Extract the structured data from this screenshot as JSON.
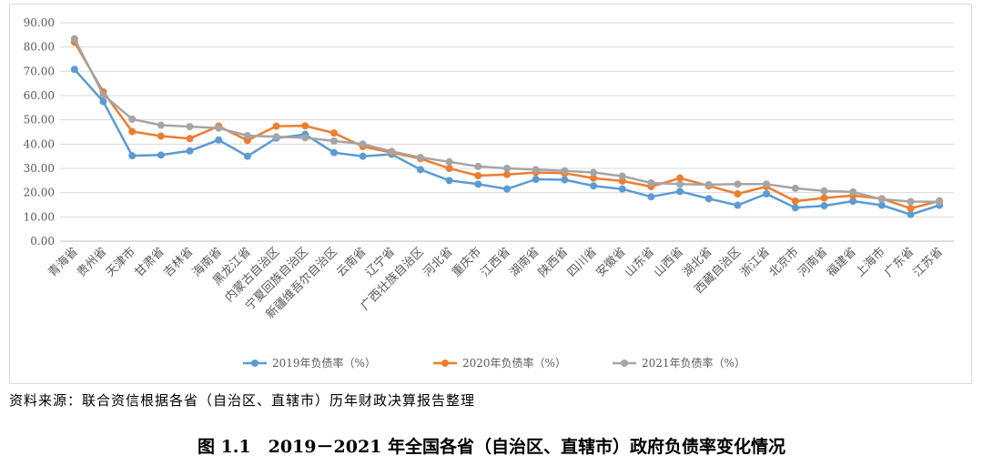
{
  "source_note": "资料来源：联合资信根据各省（自治区、直辖市）历年财政决算报告整理",
  "figure_caption": "图 1.1　2019－2021 年全国各省（自治区、直辖市）政府负债率变化情况",
  "chart_data": {
    "type": "line",
    "title": "",
    "xlabel": "",
    "ylabel": "",
    "ylim": [
      0,
      90
    ],
    "yticks": [
      "0.00",
      "10.00",
      "20.00",
      "30.00",
      "40.00",
      "50.00",
      "60.00",
      "70.00",
      "80.00",
      "90.00"
    ],
    "grid": true,
    "legend_position": "bottom",
    "categories": [
      "青海省",
      "贵州省",
      "天津市",
      "甘肃省",
      "吉林省",
      "海南省",
      "黑龙江省",
      "内蒙古自治区",
      "宁夏回族自治区",
      "新疆维吾尔自治区",
      "云南省",
      "辽宁省",
      "广西壮族自治区",
      "河北省",
      "重庆市",
      "江西省",
      "湖南省",
      "陕西省",
      "四川省",
      "安徽省",
      "山东省",
      "山西省",
      "湖北省",
      "西藏自治区",
      "浙江省",
      "北京市",
      "河南省",
      "福建省",
      "上海市",
      "广东省",
      "江苏省"
    ],
    "series": [
      {
        "name": "2019年负债率（%）",
        "color": "#5b9bd5",
        "values": [
          70.8,
          57.5,
          35.2,
          35.5,
          37.2,
          41.7,
          35.0,
          42.5,
          44.0,
          36.5,
          35.0,
          35.8,
          29.5,
          25.0,
          23.5,
          21.5,
          25.5,
          25.3,
          22.8,
          21.5,
          18.3,
          20.5,
          17.5,
          14.8,
          19.5,
          13.8,
          14.6,
          16.5,
          14.8,
          11.0,
          14.8
        ]
      },
      {
        "name": "2020年负债率（%）",
        "color": "#ed7d31",
        "values": [
          82.0,
          61.5,
          45.2,
          43.3,
          42.3,
          47.4,
          41.5,
          47.4,
          47.5,
          44.6,
          39.0,
          36.5,
          34.0,
          30.0,
          27.0,
          27.5,
          28.3,
          28.0,
          26.0,
          24.8,
          22.5,
          26.0,
          22.8,
          19.5,
          22.5,
          16.5,
          17.8,
          18.8,
          17.5,
          13.5,
          16.6
        ]
      },
      {
        "name": "2021年负债率（%）",
        "color": "#a5a5a5",
        "values": [
          83.4,
          60.3,
          50.3,
          47.8,
          47.2,
          46.6,
          43.5,
          43.0,
          42.6,
          41.3,
          40.0,
          37.0,
          34.5,
          32.7,
          30.8,
          30.0,
          29.5,
          29.0,
          28.3,
          26.8,
          24.0,
          23.5,
          23.3,
          23.5,
          23.5,
          21.8,
          20.7,
          20.3,
          17.3,
          16.3,
          16.2
        ]
      }
    ]
  }
}
